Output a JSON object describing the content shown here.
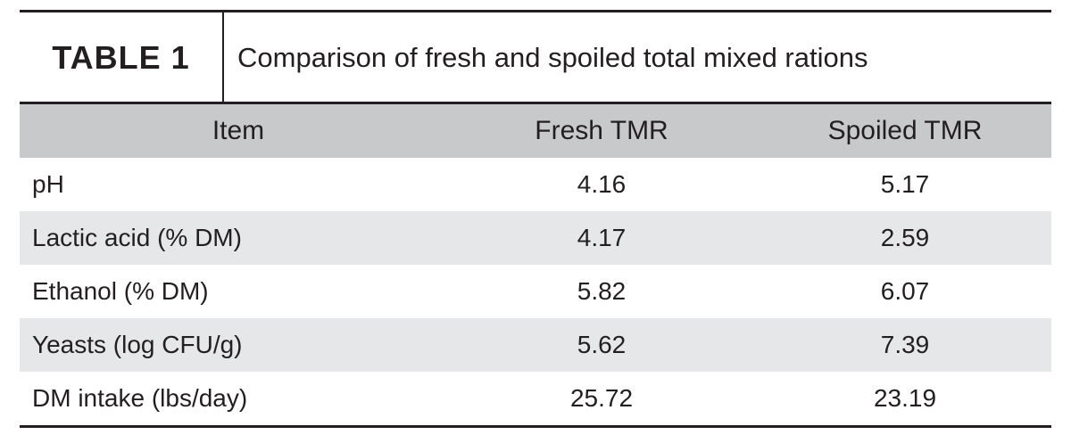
{
  "header": {
    "label": "TABLE 1",
    "title": "Comparison of fresh and spoiled total mixed rations"
  },
  "table": {
    "columns": [
      "Item",
      "Fresh TMR",
      "Spoiled TMR"
    ],
    "rows": [
      [
        "pH",
        4.16,
        5.17
      ],
      [
        "Lactic acid (% DM)",
        4.17,
        2.59
      ],
      [
        "Ethanol (% DM)",
        5.82,
        6.07
      ],
      [
        "Yeasts (log CFU/g)",
        5.62,
        7.39
      ],
      [
        "DM intake (lbs/day)",
        25.72,
        23.19
      ]
    ]
  }
}
